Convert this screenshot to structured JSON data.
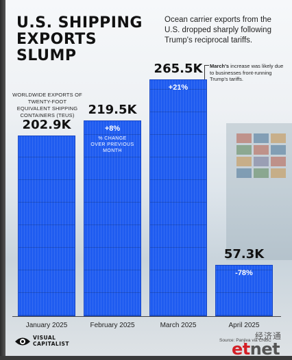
{
  "header": {
    "title_line1": "U.S. SHIPPING",
    "title_line2": "EXPORTS SLUMP",
    "subtitle": "Ocean carrier exports from the U.S. dropped sharply following Trump's reciprocal tariffs."
  },
  "annotation": {
    "bold": "March's",
    "text": " increase was likely due to businesses front-running Trump's tariffs."
  },
  "measure_label": "Worldwide exports of twenty-foot equivalent shipping containers (TEUs)",
  "chart_data": {
    "type": "bar",
    "title": "U.S. SHIPPING EXPORTS SLUMP",
    "ylabel": "Worldwide exports of twenty-foot equivalent shipping containers (TEUs)",
    "categories": [
      "January 2025",
      "February 2025",
      "March 2025",
      "April 2025"
    ],
    "values": [
      202900,
      219500,
      265500,
      57300
    ],
    "value_labels": [
      "202.9K",
      "219.5K",
      "265.5K",
      "57.3K"
    ],
    "changes": [
      "",
      "+8%",
      "+21%",
      "-78%"
    ],
    "change_note": "% change over previous month",
    "ylim": [
      0,
      265500
    ],
    "grid": false,
    "bar_color": "#1f5cf0"
  },
  "footer": {
    "logo_line1": "VISUAL",
    "logo_line2": "CAPITALIST",
    "source": "Source: Panjiva via CNBC"
  },
  "watermark": {
    "cn": "经济通",
    "et": "et",
    "net": "net"
  }
}
